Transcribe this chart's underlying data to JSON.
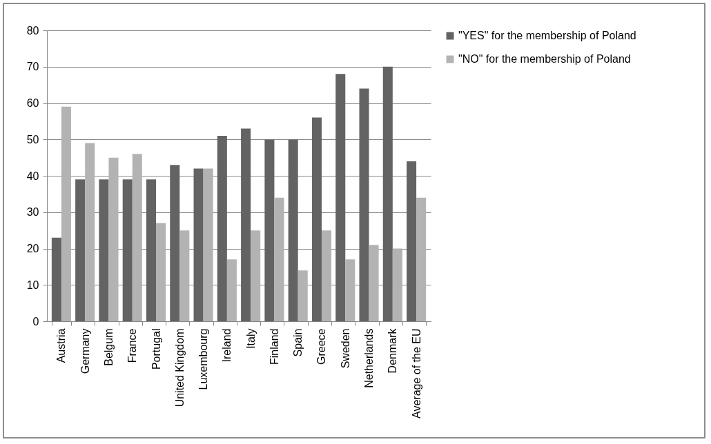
{
  "chart_data": {
    "type": "bar",
    "categories": [
      "Austria",
      "Germany",
      "Belgum",
      "France",
      "Portugal",
      "United Kingdom",
      "Luxembourg",
      "Ireland",
      "Italy",
      "Finland",
      "Spain",
      "Greece",
      "Sweden",
      "Netherlands",
      "Denmark",
      "Average of the EU"
    ],
    "series": [
      {
        "name": "\"YES\" for the membership of Poland",
        "color": "#636363",
        "values": [
          23,
          39,
          39,
          39,
          39,
          43,
          42,
          51,
          53,
          50,
          50,
          56,
          68,
          64,
          70,
          44
        ]
      },
      {
        "name": "\"NO\" for the membership of Poland",
        "color": "#b3b3b3",
        "values": [
          59,
          49,
          45,
          46,
          27,
          25,
          42,
          17,
          25,
          34,
          14,
          25,
          17,
          21,
          20,
          34
        ]
      }
    ],
    "ylim": [
      0,
      80
    ],
    "yticks": [
      0,
      10,
      20,
      30,
      40,
      50,
      60,
      70,
      80
    ],
    "grid": "y",
    "legend": "right"
  }
}
